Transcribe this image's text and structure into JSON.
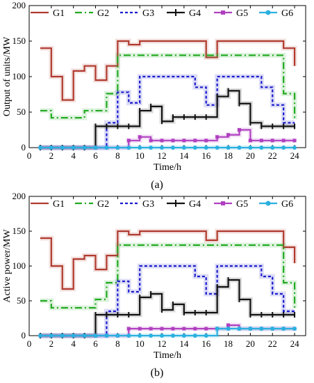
{
  "chart_data": [
    {
      "type": "line",
      "panel_label": "(a)",
      "xlabel": "Time/h",
      "ylabel": "Output of units/MW",
      "x": [
        1,
        2,
        3,
        4,
        5,
        6,
        7,
        8,
        9,
        10,
        11,
        12,
        13,
        14,
        15,
        16,
        17,
        18,
        19,
        20,
        21,
        22,
        23,
        24
      ],
      "xticks": [
        0,
        2,
        4,
        6,
        8,
        10,
        12,
        14,
        16,
        18,
        20,
        22,
        24
      ],
      "yticks": [
        0,
        50,
        100,
        150,
        200
      ],
      "xlim": [
        0,
        25
      ],
      "ylim": [
        0,
        200
      ],
      "grid": false,
      "legend_position": "top",
      "series": [
        {
          "name": "G1",
          "color": "#b03a2e",
          "values": [
            140,
            100,
            67,
            108,
            115,
            95,
            115,
            150,
            145,
            150,
            150,
            150,
            150,
            150,
            150,
            127,
            150,
            150,
            150,
            150,
            150,
            150,
            140,
            115
          ]
        },
        {
          "name": "G2",
          "color": "#22aa22",
          "values": [
            52,
            42,
            42,
            42,
            52,
            52,
            76,
            130,
            130,
            130,
            130,
            130,
            130,
            130,
            130,
            130,
            130,
            130,
            130,
            130,
            130,
            130,
            76,
            40
          ]
        },
        {
          "name": "G3",
          "color": "#1a1acc",
          "values": [
            0,
            0,
            0,
            0,
            0,
            0,
            35,
            78,
            63,
            100,
            100,
            100,
            100,
            100,
            85,
            60,
            100,
            100,
            100,
            100,
            85,
            60,
            35,
            35
          ]
        },
        {
          "name": "G4",
          "color": "#111111",
          "values": [
            0,
            0,
            0,
            0,
            0,
            30,
            30,
            30,
            30,
            52,
            58,
            37,
            43,
            43,
            43,
            43,
            72,
            80,
            62,
            35,
            30,
            30,
            30,
            30
          ]
        },
        {
          "name": "G5",
          "color": "#b040c0",
          "values": [
            0,
            0,
            0,
            0,
            0,
            0,
            0,
            0,
            10,
            15,
            10,
            10,
            10,
            10,
            10,
            10,
            15,
            18,
            25,
            10,
            10,
            10,
            10,
            10
          ]
        },
        {
          "name": "G6",
          "color": "#2ab0e0",
          "values": [
            0,
            0,
            0,
            0,
            0,
            0,
            0,
            0,
            0,
            0,
            0,
            0,
            0,
            0,
            0,
            0,
            0,
            0,
            0,
            0,
            0,
            0,
            0,
            0
          ]
        }
      ]
    },
    {
      "type": "line",
      "panel_label": "(b)",
      "xlabel": "Time/h",
      "ylabel": "Active power/MW",
      "x": [
        1,
        2,
        3,
        4,
        5,
        6,
        7,
        8,
        9,
        10,
        11,
        12,
        13,
        14,
        15,
        16,
        17,
        18,
        19,
        20,
        21,
        22,
        23,
        24
      ],
      "xticks": [
        0,
        2,
        4,
        6,
        8,
        10,
        12,
        14,
        16,
        18,
        20,
        22,
        24
      ],
      "yticks": [
        0,
        50,
        100,
        150,
        200
      ],
      "xlim": [
        0,
        25
      ],
      "ylim": [
        0,
        200
      ],
      "grid": false,
      "legend_position": "top",
      "series": [
        {
          "name": "G1",
          "color": "#b03a2e",
          "values": [
            140,
            100,
            67,
            110,
            115,
            95,
            115,
            150,
            145,
            150,
            150,
            150,
            150,
            150,
            150,
            137,
            150,
            150,
            150,
            150,
            150,
            150,
            127,
            104
          ]
        },
        {
          "name": "G2",
          "color": "#22aa22",
          "values": [
            50,
            40,
            40,
            40,
            40,
            52,
            76,
            130,
            130,
            130,
            130,
            130,
            130,
            130,
            130,
            130,
            130,
            130,
            130,
            130,
            130,
            130,
            76,
            40
          ]
        },
        {
          "name": "G3",
          "color": "#1a1acc",
          "values": [
            0,
            0,
            0,
            0,
            0,
            0,
            35,
            78,
            63,
            100,
            100,
            100,
            100,
            100,
            85,
            60,
            100,
            100,
            100,
            100,
            85,
            60,
            35,
            35
          ]
        },
        {
          "name": "G4",
          "color": "#111111",
          "values": [
            0,
            0,
            0,
            0,
            0,
            30,
            30,
            30,
            30,
            55,
            60,
            37,
            45,
            33,
            33,
            33,
            70,
            80,
            52,
            30,
            30,
            30,
            30,
            30
          ]
        },
        {
          "name": "G5",
          "color": "#b040c0",
          "values": [
            0,
            0,
            0,
            0,
            0,
            0,
            0,
            0,
            10,
            10,
            10,
            10,
            10,
            10,
            10,
            10,
            10,
            15,
            10,
            10,
            10,
            10,
            10,
            10
          ]
        },
        {
          "name": "G6",
          "color": "#2ab0e0",
          "values": [
            0,
            0,
            0,
            0,
            0,
            0,
            0,
            0,
            0,
            0,
            0,
            0,
            0,
            0,
            0,
            0,
            10,
            10,
            10,
            10,
            10,
            10,
            10,
            10
          ]
        }
      ]
    }
  ]
}
